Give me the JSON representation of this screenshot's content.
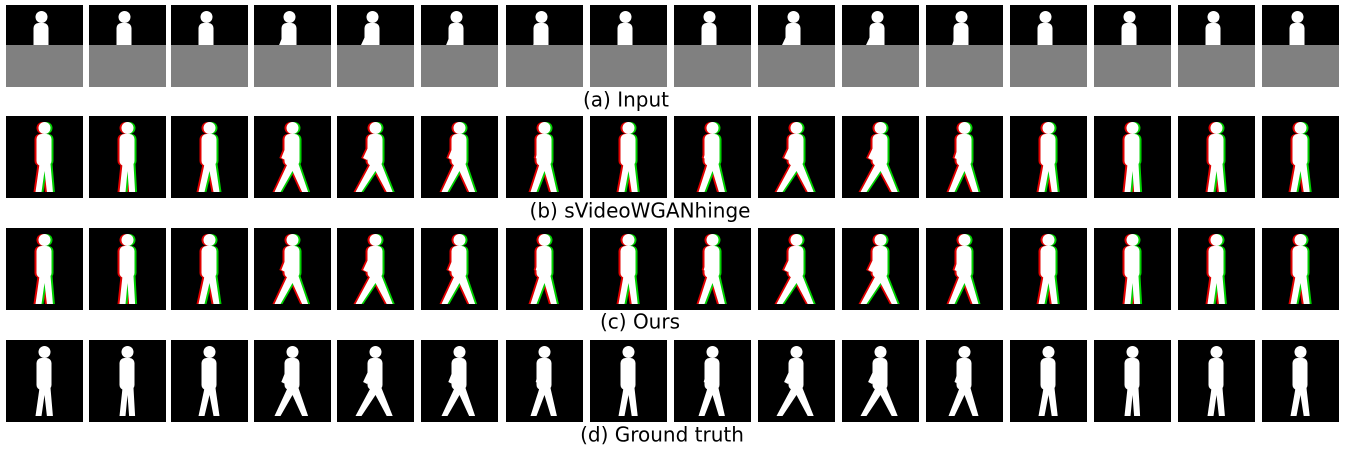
{
  "rows": [
    {
      "caption": "(a) Input"
    },
    {
      "caption": "(b) sVideoWGANhinge"
    },
    {
      "caption": "(c) Ours"
    },
    {
      "caption": "(d) Ground truth"
    }
  ]
}
